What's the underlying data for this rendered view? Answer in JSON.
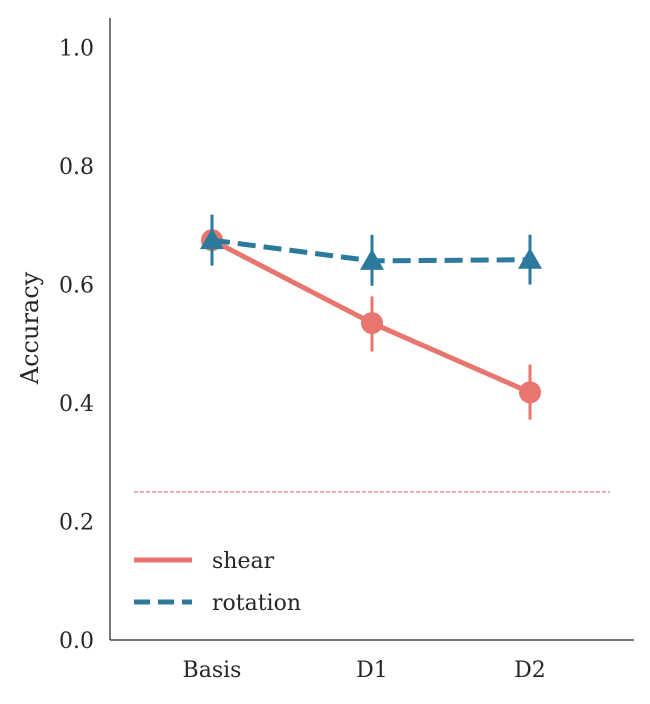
{
  "chart_data": {
    "type": "line",
    "title": "",
    "xlabel": "",
    "ylabel": "Accuracy",
    "ylim": [
      0.0,
      1.05
    ],
    "yticks": [
      0.0,
      0.2,
      0.4,
      0.6,
      0.8,
      1.0
    ],
    "ytick_labels": [
      "0.0",
      "0.2",
      "0.4",
      "0.6",
      "0.8",
      "1.0"
    ],
    "categories": [
      "Basis",
      "D1",
      "D2"
    ],
    "grid": false,
    "legend_position": "lower-left",
    "chance_level": 0.25,
    "chance_color": "#e05a6d",
    "series": [
      {
        "name": "shear",
        "color": "#e8756e",
        "linestyle": "solid",
        "marker": "circle",
        "values": [
          0.675,
          0.535,
          0.418
        ],
        "err_low": [
          0.632,
          0.487,
          0.372
        ],
        "err_high": [
          0.718,
          0.58,
          0.465
        ]
      },
      {
        "name": "rotation",
        "color": "#2b7a9b",
        "linestyle": "dashed",
        "marker": "triangle",
        "values": [
          0.675,
          0.64,
          0.642
        ],
        "err_low": [
          0.632,
          0.598,
          0.6
        ],
        "err_high": [
          0.718,
          0.684,
          0.684
        ]
      }
    ]
  }
}
